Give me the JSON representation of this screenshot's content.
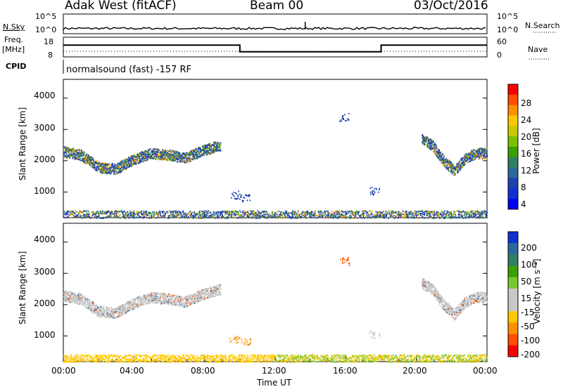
{
  "header": {
    "station": "Adak West (fitACF)",
    "beam": "Beam 00",
    "date": "03/Oct/2016"
  },
  "strip": {
    "nsky_label": "N.Sky",
    "nsky_ticks": [
      "10^5",
      "10^0"
    ],
    "nsearch_label": "N.Search",
    "nsearch_ticks": [
      "10^5",
      "10^0"
    ],
    "freq_label_1": "Freq.",
    "freq_label_2": "[MHz]",
    "freq_ticks": [
      "18",
      "8"
    ],
    "nave_label": "Nave",
    "nave_ticks": [
      "60",
      "0"
    ],
    "cpid_label": "CPID",
    "cpid_text": "normalsound (fast) -157 RF",
    "freq_steps": [
      {
        "from_h": 0,
        "to_h": 10,
        "mhz": 15
      },
      {
        "from_h": 10,
        "to_h": 18,
        "mhz": 11
      },
      {
        "from_h": 18,
        "to_h": 24,
        "mhz": 15
      }
    ]
  },
  "x_axis": {
    "label": "Time UT",
    "ticks": [
      "00:00",
      "04:00",
      "08:00",
      "12:00",
      "16:00",
      "20:00",
      "00:00"
    ],
    "hours": [
      0,
      4,
      8,
      12,
      16,
      20,
      24
    ]
  },
  "power_panel": {
    "ylabel": "Slant Range [km]",
    "yticks": [
      "4000",
      "3000",
      "2000",
      "1000"
    ],
    "cbar_label": "Power [dB]",
    "cbar_ticks": [
      "28",
      "24",
      "20",
      "16",
      "12",
      "8",
      "4"
    ],
    "cbar_colors": [
      "#ff0000",
      "#ff5000",
      "#ff9000",
      "#ffc800",
      "#c8c800",
      "#7ac200",
      "#3aa000",
      "#2e8060",
      "#2a6a9a",
      "#1e40b0",
      "#1030d0",
      "#0000ff"
    ]
  },
  "velocity_panel": {
    "ylabel": "Slant Range [km]",
    "yticks": [
      "4000",
      "3000",
      "2000",
      "1000"
    ],
    "cbar_label": "Velocity [m s⁻¹]",
    "cbar_ticks": [
      "200",
      "100",
      "50",
      "15",
      "-15",
      "-50",
      "-100",
      "-200"
    ],
    "cbar_colors": [
      "#1030d0",
      "#2a6a9a",
      "#2e8060",
      "#3aa000",
      "#7ac830",
      "#c8c8c8",
      "#c8c8c8",
      "#ffc800",
      "#ff9000",
      "#ff5000",
      "#ff0000"
    ]
  },
  "chart_data": {
    "type": "heatmap",
    "title": "Adak West (fitACF)  Beam 00  03/Oct/2016",
    "xlabel": "Time UT",
    "ylabel": "Slant Range [km]",
    "xlim_hours": [
      0,
      24
    ],
    "ylim_km": [
      180,
      4600
    ],
    "echo_bands": [
      {
        "name": "main backscatter",
        "start_h": 0.0,
        "end_h": 8.9,
        "center_km": [
          2300,
          2200,
          1800,
          1750,
          2050,
          2250,
          2200,
          2100,
          2350,
          2500
        ],
        "color_power": "#ffc800"
      },
      {
        "name": "evening backscatter",
        "start_h": 20.3,
        "end_h": 24.0,
        "center_km": [
          2700,
          2500,
          2000,
          1700,
          2100,
          2250,
          2250
        ],
        "color_power": "#ff9000"
      },
      {
        "name": "near-range clutter",
        "start_h": 0.0,
        "end_h": 24.0,
        "center_km": [
          300
        ],
        "color_power": "#2a6a9a"
      }
    ],
    "colorbar_power_db": [
      4,
      8,
      12,
      16,
      20,
      24,
      28
    ],
    "colorbar_velocity_ms": [
      -200,
      -100,
      -50,
      -15,
      15,
      50,
      100,
      200
    ]
  }
}
